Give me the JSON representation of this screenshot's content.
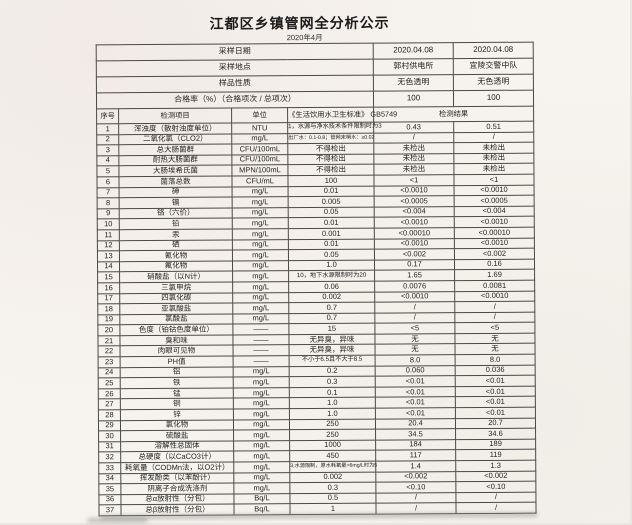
{
  "page": {
    "title": "江都区乡镇管网全分析公示",
    "subtitle": "2020年4月"
  },
  "info_rows": [
    {
      "label": "采样日期",
      "col1": "2020.04.08",
      "col2": "2020.04.08"
    },
    {
      "label": "采样地点",
      "col1": "郭村供电所",
      "col2": "宜陵交警中队"
    },
    {
      "label": "样品性质",
      "col1": "无色透明",
      "col2": "无色透明"
    },
    {
      "label": "合格率（%）（合格项次 / 总项次）",
      "col1": "100",
      "col2": "100"
    }
  ],
  "table": {
    "headers": {
      "no": "序号",
      "item": "检测项目",
      "unit": "单位",
      "standard": "《生活饮用水卫生标准》 GB5749",
      "result": "检测结果"
    },
    "rows": [
      {
        "no": "1",
        "item": "浑浊度（散射浊度单位）",
        "unit": "NTU",
        "standard": "1，水源与净水技术条件限制时为3",
        "r1": "0.43",
        "r2": "0.51"
      },
      {
        "no": "2",
        "item": "二氧化氯（CLO2）",
        "unit": "mg/L",
        "standard": "出厂水：0.1-0.8；管网末梢水：≥0.02",
        "r1": "/",
        "r2": "/"
      },
      {
        "no": "3",
        "item": "总大肠菌群",
        "unit": "CFU/100mL",
        "standard": "不得检出",
        "r1": "未检出",
        "r2": "未检出"
      },
      {
        "no": "4",
        "item": "耐热大肠菌群",
        "unit": "CFU/100mL",
        "standard": "不得检出",
        "r1": "未检出",
        "r2": "未检出"
      },
      {
        "no": "5",
        "item": "大肠埃希氏菌",
        "unit": "MPN/100mL",
        "standard": "不得检出",
        "r1": "未检出",
        "r2": "未检出"
      },
      {
        "no": "6",
        "item": "菌落总数",
        "unit": "CFU/mL",
        "standard": "100",
        "r1": "<1",
        "r2": "<1"
      },
      {
        "no": "7",
        "item": "砷",
        "unit": "mg/L",
        "standard": "0.01",
        "r1": "<0.0010",
        "r2": "<0.0010"
      },
      {
        "no": "8",
        "item": "镉",
        "unit": "mg/L",
        "standard": "0.005",
        "r1": "<0.0005",
        "r2": "<0.0005"
      },
      {
        "no": "9",
        "item": "铬（六价）",
        "unit": "mg/L",
        "standard": "0.05",
        "r1": "<0.004",
        "r2": "<0.004"
      },
      {
        "no": "10",
        "item": "铅",
        "unit": "mg/L",
        "standard": "0.01",
        "r1": "<0.0010",
        "r2": "<0.0010"
      },
      {
        "no": "11",
        "item": "汞",
        "unit": "mg/L",
        "standard": "0.001",
        "r1": "<0.00010",
        "r2": "<0.00010"
      },
      {
        "no": "12",
        "item": "硒",
        "unit": "mg/L",
        "standard": "0.01",
        "r1": "<0.0010",
        "r2": "<0.0010"
      },
      {
        "no": "13",
        "item": "氰化物",
        "unit": "mg/L",
        "standard": "0.05",
        "r1": "<0.002",
        "r2": "<0.002"
      },
      {
        "no": "14",
        "item": "氟化物",
        "unit": "mg/L",
        "standard": "1.0",
        "r1": "0.17",
        "r2": "0.16"
      },
      {
        "no": "15",
        "item": "硝酸盐（以N计）",
        "unit": "mg/L",
        "standard": "10，地下水源限制时为20",
        "r1": "1.65",
        "r2": "1.69"
      },
      {
        "no": "16",
        "item": "三氯甲烷",
        "unit": "mg/L",
        "standard": "0.06",
        "r1": "0.0076",
        "r2": "0.0081"
      },
      {
        "no": "17",
        "item": "四氯化碳",
        "unit": "mg/L",
        "standard": "0.002",
        "r1": "<0.0010",
        "r2": "<0.0010"
      },
      {
        "no": "18",
        "item": "亚氯酸盐",
        "unit": "mg/L",
        "standard": "0.7",
        "r1": "/",
        "r2": "/"
      },
      {
        "no": "19",
        "item": "氯酸盐",
        "unit": "mg/L",
        "standard": "0.7",
        "r1": "/",
        "r2": "/"
      },
      {
        "no": "20",
        "item": "色度（铂钴色度单位）",
        "unit": "——",
        "standard": "15",
        "r1": "<5",
        "r2": "<5"
      },
      {
        "no": "21",
        "item": "臭和味",
        "unit": "——",
        "standard": "无异臭，异味",
        "r1": "无",
        "r2": "无"
      },
      {
        "no": "22",
        "item": "肉眼可见物",
        "unit": "——",
        "standard": "无异臭，异味",
        "r1": "无",
        "r2": "无"
      },
      {
        "no": "23",
        "item": "PH值",
        "unit": "——",
        "standard": "不小于6.5且不大于8.5",
        "r1": "8.0",
        "r2": "8.0"
      },
      {
        "no": "24",
        "item": "铝",
        "unit": "mg/L",
        "standard": "0.2",
        "r1": "0.060",
        "r2": "0.036"
      },
      {
        "no": "25",
        "item": "铁",
        "unit": "mg/L",
        "standard": "0.3",
        "r1": "<0.01",
        "r2": "<0.01"
      },
      {
        "no": "26",
        "item": "锰",
        "unit": "mg/L",
        "standard": "0.1",
        "r1": "<0.01",
        "r2": "<0.01"
      },
      {
        "no": "27",
        "item": "铜",
        "unit": "mg/L",
        "standard": "1.0",
        "r1": "<0.01",
        "r2": "<0.01"
      },
      {
        "no": "28",
        "item": "锌",
        "unit": "mg/L",
        "standard": "1.0",
        "r1": "<0.01",
        "r2": "<0.01"
      },
      {
        "no": "29",
        "item": "氯化物",
        "unit": "mg/L",
        "standard": "250",
        "r1": "20.4",
        "r2": "20.7"
      },
      {
        "no": "30",
        "item": "硫酸盐",
        "unit": "mg/L",
        "standard": "250",
        "r1": "34.5",
        "r2": "34.6"
      },
      {
        "no": "31",
        "item": "溶解性总固体",
        "unit": "mg/L",
        "standard": "1000",
        "r1": "184",
        "r2": "189"
      },
      {
        "no": "32",
        "item": "总硬度（以CaCO3计）",
        "unit": "mg/L",
        "standard": "450",
        "r1": "117",
        "r2": "119"
      },
      {
        "no": "33",
        "item": "耗氧量（CODMn法，以O2计）",
        "unit": "mg/L",
        "standard": "3,水源限制，原水耗氧量>6mg/L时为5",
        "r1": "1.4",
        "r2": "1.3"
      },
      {
        "no": "34",
        "item": "挥发酚类（以苯酚计）",
        "unit": "mg/L",
        "standard": "0.002",
        "r1": "<0.002",
        "r2": "<0.002"
      },
      {
        "no": "35",
        "item": "阴离子合成洗涤剂",
        "unit": "mg/L",
        "standard": "0.3",
        "r1": "<0.10",
        "r2": "<0.10"
      },
      {
        "no": "36",
        "item": "总α放射性（分包）",
        "unit": "Bq/L",
        "standard": "0.5",
        "r1": "/",
        "r2": "/"
      },
      {
        "no": "37",
        "item": "总β放射性（分包）",
        "unit": "Bq/L",
        "standard": "1",
        "r1": "/",
        "r2": "/"
      }
    ]
  }
}
